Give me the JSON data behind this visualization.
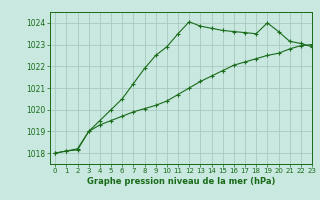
{
  "line1_x": [
    0,
    1,
    2,
    3,
    4,
    5,
    6,
    7,
    8,
    9,
    10,
    11,
    12,
    13,
    14,
    15,
    16,
    17,
    18,
    19,
    20,
    21,
    22,
    23
  ],
  "line1_y": [
    1018.0,
    1018.1,
    1018.2,
    1019.0,
    1019.5,
    1020.0,
    1020.5,
    1021.2,
    1021.9,
    1022.5,
    1022.9,
    1023.5,
    1024.05,
    1023.85,
    1023.75,
    1023.65,
    1023.6,
    1023.55,
    1023.5,
    1024.0,
    1023.6,
    1023.15,
    1023.05,
    1022.9
  ],
  "line2_x": [
    0,
    1,
    2,
    3,
    4,
    5,
    6,
    7,
    8,
    9,
    10,
    11,
    12,
    13,
    14,
    15,
    16,
    17,
    18,
    19,
    20,
    21,
    22,
    23
  ],
  "line2_y": [
    1018.0,
    1018.1,
    1018.15,
    1019.0,
    1019.3,
    1019.5,
    1019.7,
    1019.9,
    1020.05,
    1020.2,
    1020.4,
    1020.7,
    1021.0,
    1021.3,
    1021.55,
    1021.8,
    1022.05,
    1022.2,
    1022.35,
    1022.5,
    1022.6,
    1022.8,
    1022.95,
    1023.0
  ],
  "line_color": "#1a6b1a",
  "bg_color": "#c8e8e0",
  "grid_color": "#a8c8c0",
  "xlabel": "Graphe pression niveau de la mer (hPa)",
  "ylim": [
    1017.5,
    1024.5
  ],
  "xlim": [
    -0.5,
    23
  ],
  "yticks": [
    1018,
    1019,
    1020,
    1021,
    1022,
    1023,
    1024
  ],
  "xticks": [
    0,
    1,
    2,
    3,
    4,
    5,
    6,
    7,
    8,
    9,
    10,
    11,
    12,
    13,
    14,
    15,
    16,
    17,
    18,
    19,
    20,
    21,
    22,
    23
  ],
  "marker_size": 3,
  "line_width": 0.8
}
